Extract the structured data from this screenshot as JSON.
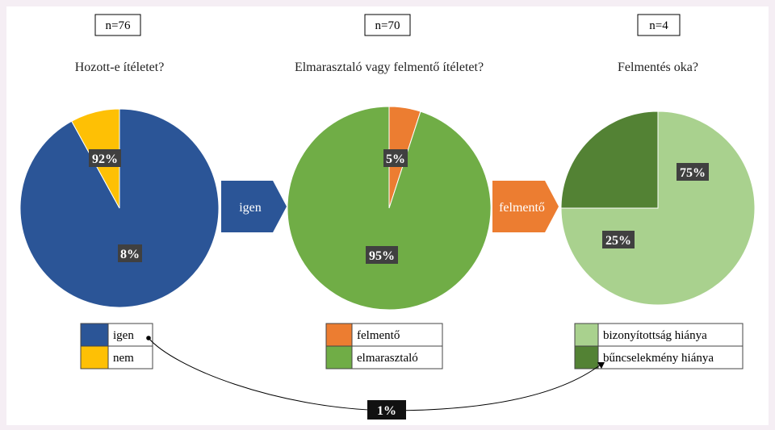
{
  "chart_data": [
    {
      "type": "pie",
      "sample_size": "n=76",
      "title": "Hozott-e ítéletet?",
      "slices": [
        {
          "label": "igen",
          "value": 92,
          "display": "92%",
          "color": "#2b5597"
        },
        {
          "label": "nem",
          "value": 8,
          "display": "8%",
          "color": "#fec005"
        }
      ]
    },
    {
      "type": "pie",
      "sample_size": "n=70",
      "title": "Elmarasztaló vagy felmentő ítéletet?",
      "slices": [
        {
          "label": "felmentő",
          "value": 5,
          "display": "5%",
          "color": "#ec7d31"
        },
        {
          "label": "elmarasztaló",
          "value": 95,
          "display": "95%",
          "color": "#70ad46"
        }
      ]
    },
    {
      "type": "pie",
      "sample_size": "n=4",
      "title": "Felmentés oka?",
      "slices": [
        {
          "label": "bizonyítottság hiánya",
          "value": 75,
          "display": "75%",
          "color": "#a9d18e"
        },
        {
          "label": "bűncselekmény hiánya",
          "value": 25,
          "display": "25%",
          "color": "#538234"
        }
      ]
    }
  ],
  "arrows": [
    {
      "label": "igen",
      "color": "#2b5597"
    },
    {
      "label": "felmentő",
      "color": "#ec7d31"
    }
  ],
  "connector": {
    "label": "1%"
  }
}
